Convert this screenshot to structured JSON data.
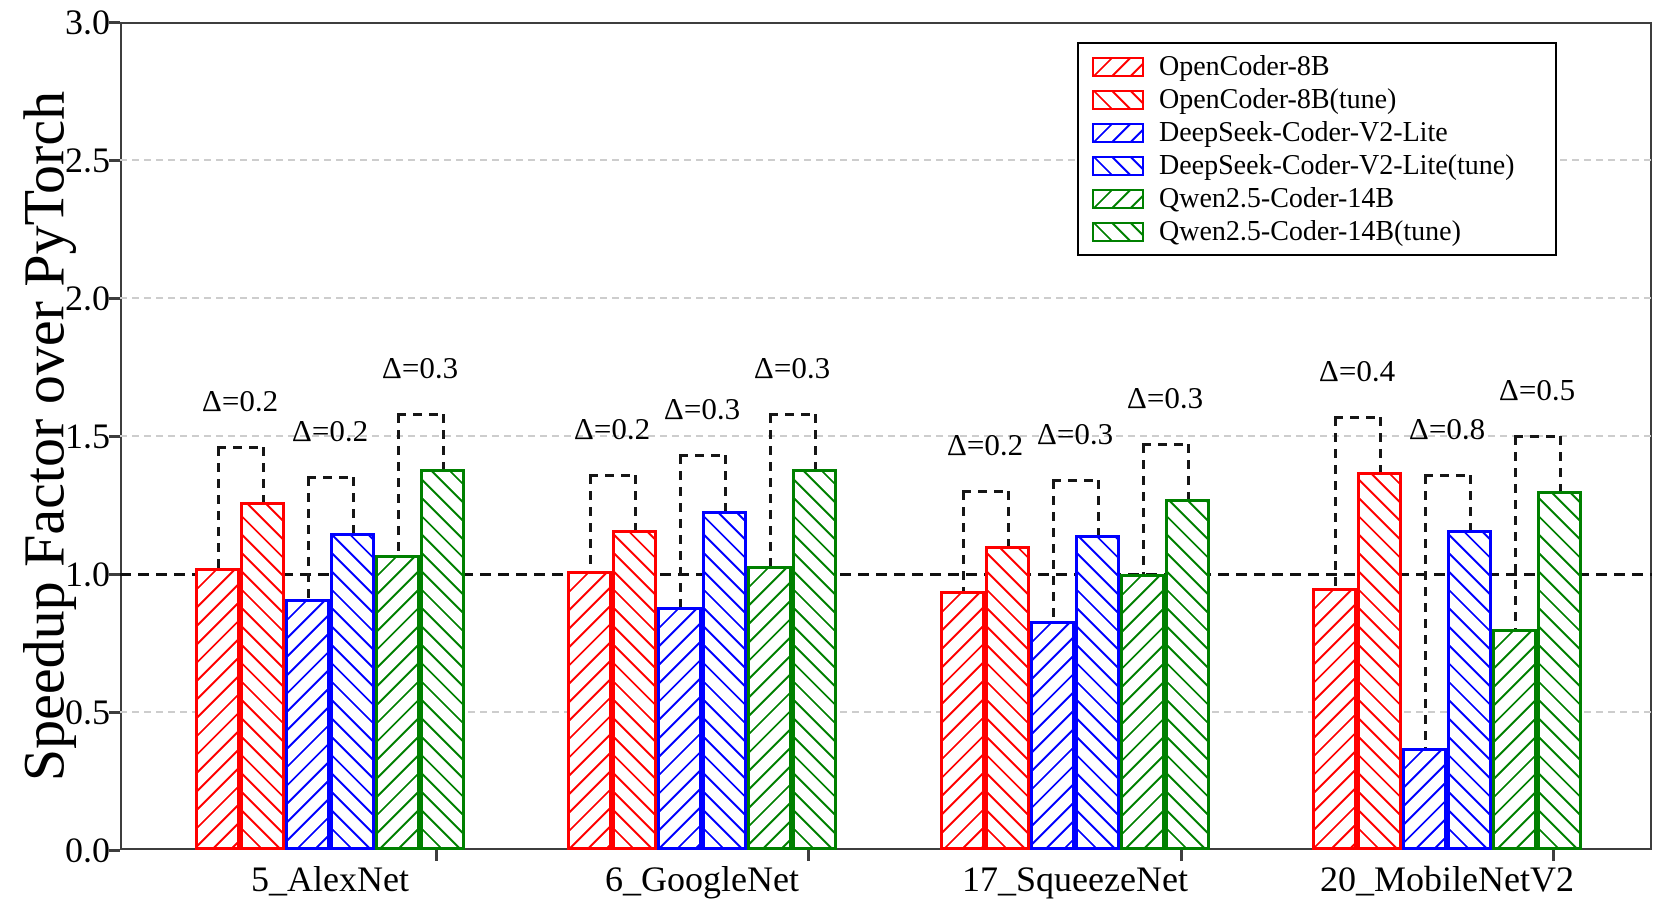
{
  "chart_data": {
    "type": "bar",
    "title": "",
    "xlabel": "",
    "ylabel": "Speedup Factor over PyTorch",
    "ylim": [
      0.0,
      3.0
    ],
    "ytick_labels": [
      "0.0",
      "0.5",
      "1.0",
      "1.5",
      "2.0",
      "2.5",
      "3.0"
    ],
    "grid": "horizontal light-gray dashed lines every 0.5",
    "reference_line": {
      "value": 1.0,
      "style": "black dashed"
    },
    "legend_position": "upper right",
    "categories": [
      "5_AlexNet",
      "6_GoogleNet",
      "17_SqueezeNet",
      "20_MobileNetV2"
    ],
    "series": [
      {
        "name": "OpenCoder-8B",
        "color": "#ff0000",
        "hatch": "/",
        "values": [
          1.02,
          1.01,
          0.94,
          0.95
        ]
      },
      {
        "name": "OpenCoder-8B(tune)",
        "color": "#ff0000",
        "hatch": "\\",
        "values": [
          1.26,
          1.16,
          1.1,
          1.37
        ]
      },
      {
        "name": "DeepSeek-Coder-V2-Lite",
        "color": "#0000ff",
        "hatch": "/",
        "values": [
          0.91,
          0.88,
          0.83,
          0.37
        ]
      },
      {
        "name": "DeepSeek-Coder-V2-Lite(tune)",
        "color": "#0000ff",
        "hatch": "\\",
        "values": [
          1.15,
          1.23,
          1.14,
          1.16
        ]
      },
      {
        "name": "Qwen2.5-Coder-14B",
        "color": "#008000",
        "hatch": "/",
        "values": [
          1.07,
          1.03,
          1.0,
          0.8
        ]
      },
      {
        "name": "Qwen2.5-Coder-14B(tune)",
        "color": "#008000",
        "hatch": "\\",
        "values": [
          1.38,
          1.38,
          1.27,
          1.3
        ]
      }
    ],
    "annotations": [
      {
        "group": 0,
        "pair": 0,
        "label": "Δ=0.2",
        "bracket_top": 1.46
      },
      {
        "group": 0,
        "pair": 1,
        "label": "Δ=0.2",
        "bracket_top": 1.35
      },
      {
        "group": 0,
        "pair": 2,
        "label": "Δ=0.3",
        "bracket_top": 1.58
      },
      {
        "group": 1,
        "pair": 0,
        "label": "Δ=0.2",
        "bracket_top": 1.36
      },
      {
        "group": 1,
        "pair": 1,
        "label": "Δ=0.3",
        "bracket_top": 1.43
      },
      {
        "group": 1,
        "pair": 2,
        "label": "Δ=0.3",
        "bracket_top": 1.58
      },
      {
        "group": 2,
        "pair": 0,
        "label": "Δ=0.2",
        "bracket_top": 1.3
      },
      {
        "group": 2,
        "pair": 1,
        "label": "Δ=0.3",
        "bracket_top": 1.34
      },
      {
        "group": 2,
        "pair": 2,
        "label": "Δ=0.3",
        "bracket_top": 1.47
      },
      {
        "group": 3,
        "pair": 0,
        "label": "Δ=0.4",
        "bracket_top": 1.57
      },
      {
        "group": 3,
        "pair": 1,
        "label": "Δ=0.8",
        "bracket_top": 1.36
      },
      {
        "group": 3,
        "pair": 2,
        "label": "Δ=0.5",
        "bracket_top": 1.5
      }
    ],
    "colors": {
      "red_series": "#ff0000",
      "blue_series": "#0000ff",
      "green_series": "#008000",
      "grid": "#cdcdcd",
      "reference_and_brackets": "#161616",
      "spines": "#3d3d3d"
    }
  }
}
